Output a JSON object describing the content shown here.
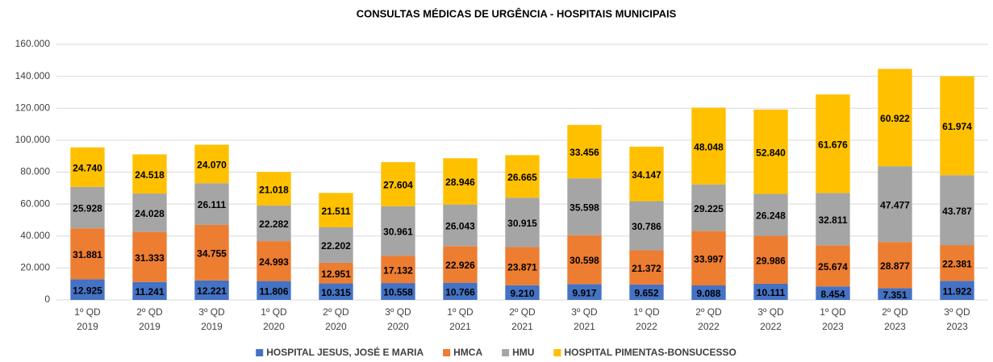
{
  "chart_data": {
    "type": "stacked_bar",
    "title": "CONSULTAS MÉDICAS DE URGÊNCIA - HOSPITAIS MUNICIPAIS",
    "categories": [
      [
        "1º QD",
        "2019"
      ],
      [
        "2º QD",
        "2019"
      ],
      [
        "3º QD",
        "2019"
      ],
      [
        "1º QD",
        "2020"
      ],
      [
        "2º QD",
        "2020"
      ],
      [
        "3º QD",
        "2020"
      ],
      [
        "1º QD",
        "2021"
      ],
      [
        "2º QD",
        "2021"
      ],
      [
        "3º QD",
        "2021"
      ],
      [
        "1º QD",
        "2022"
      ],
      [
        "2º QD",
        "2022"
      ],
      [
        "3º QD",
        "2022"
      ],
      [
        "1º QD",
        "2023"
      ],
      [
        "2º QD",
        "2023"
      ],
      [
        "3º QD",
        "2023"
      ]
    ],
    "series": [
      {
        "name": "HOSPITAL JESUS, JOSÉ E MARIA",
        "color": "#4472c4",
        "values": [
          12925,
          11241,
          12221,
          11806,
          10315,
          10558,
          10766,
          9210,
          9917,
          9652,
          9088,
          10111,
          8454,
          7351,
          11922
        ],
        "value_labels": [
          "12.925",
          "11.241",
          "12.221",
          "11.806",
          "10.315",
          "10.558",
          "10.766",
          "9.210",
          "9.917",
          "9.652",
          "9.088",
          "10.111",
          "8.454",
          "7.351",
          "11.922"
        ]
      },
      {
        "name": "HMCA",
        "color": "#ed7d31",
        "values": [
          31881,
          31333,
          34755,
          24993,
          12951,
          17132,
          22926,
          23871,
          30598,
          21372,
          33997,
          29986,
          25674,
          28877,
          22381
        ],
        "value_labels": [
          "31.881",
          "31.333",
          "34.755",
          "24.993",
          "12.951",
          "17.132",
          "22.926",
          "23.871",
          "30.598",
          "21.372",
          "33.997",
          "29.986",
          "25.674",
          "28.877",
          "22.381"
        ]
      },
      {
        "name": "HMU",
        "color": "#a5a5a5",
        "values": [
          25928,
          24028,
          26111,
          22282,
          22202,
          30961,
          26043,
          30915,
          35598,
          30786,
          29225,
          26248,
          32811,
          47477,
          43787
        ],
        "value_labels": [
          "25.928",
          "24.028",
          "26.111",
          "22.282",
          "22.202",
          "30.961",
          "26.043",
          "30.915",
          "35.598",
          "30.786",
          "29.225",
          "26.248",
          "32.811",
          "47.477",
          "43.787"
        ]
      },
      {
        "name": "HOSPITAL PIMENTAS-BONSUCESSO",
        "color": "#ffc000",
        "values": [
          24740,
          24518,
          24070,
          21018,
          21511,
          27604,
          28946,
          26665,
          33456,
          34147,
          48048,
          52840,
          61676,
          60922,
          61974
        ],
        "value_labels": [
          "24.740",
          "24.518",
          "24.070",
          "21.018",
          "21.511",
          "27.604",
          "28.946",
          "26.665",
          "33.456",
          "34.147",
          "48.048",
          "52.840",
          "61.676",
          "60.922",
          "61.974"
        ]
      }
    ],
    "ylim": [
      0,
      160000
    ],
    "yticks": [
      0,
      {
        "value": 20000,
        "label": "20.000"
      },
      {
        "value": 40000,
        "label": "40.000"
      },
      {
        "value": 60000,
        "label": "60.000"
      },
      {
        "value": 80000,
        "label": "80.000"
      },
      {
        "value": 100000,
        "label": "100.000"
      },
      {
        "value": 120000,
        "label": "120.000"
      },
      {
        "value": 140000,
        "label": "140.000"
      },
      {
        "value": 160000,
        "label": "160.000"
      }
    ],
    "grid": true,
    "legend": "bottom"
  }
}
